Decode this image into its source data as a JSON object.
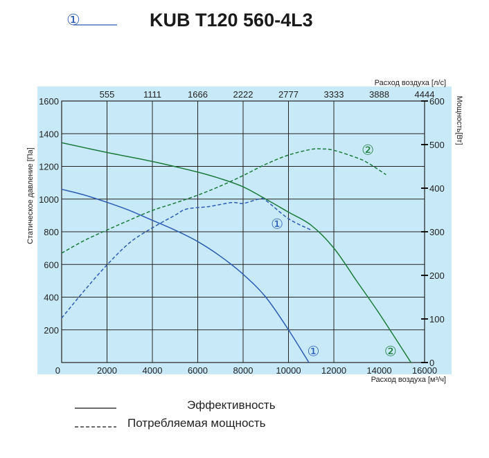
{
  "header": {
    "title": "KUB T120 560-4L3",
    "legend_marker": "①"
  },
  "legend": {
    "solid_label": "Эффективность",
    "dashed_label": "Потребляемая мощность"
  },
  "colors": {
    "background": "#c8e9f8",
    "grid": "#222222",
    "series1": "#2b5cb3",
    "series2": "#1a7a3a"
  },
  "chart_data": {
    "type": "line",
    "grid": true,
    "xlabel": "Расход воздуха [м³/ч]",
    "xlim": [
      0,
      16000
    ],
    "xticks": [
      0,
      2000,
      4000,
      6000,
      8000,
      10000,
      12000,
      14000,
      16000
    ],
    "x2label": "Расход воздуха [л/с]",
    "x2ticks": [
      {
        "at": 2000,
        "label": "555"
      },
      {
        "at": 4000,
        "label": "1111"
      },
      {
        "at": 6000,
        "label": "1666"
      },
      {
        "at": 8000,
        "label": "2222"
      },
      {
        "at": 10000,
        "label": "2777"
      },
      {
        "at": 12000,
        "label": "3333"
      },
      {
        "at": 14000,
        "label": "3888"
      },
      {
        "at": 16000,
        "label": "4444"
      }
    ],
    "ylabel": "Статическое давление [Па]",
    "ylim": [
      0,
      1600
    ],
    "yticks": [
      200,
      400,
      600,
      800,
      1000,
      1200,
      1400,
      1600
    ],
    "y2label": "Мощность[Вт]",
    "y2lim": [
      0,
      600
    ],
    "y2ticks": [
      0,
      100,
      200,
      300,
      400,
      500,
      600
    ],
    "series": [
      {
        "label": "①",
        "kind": "pressure",
        "color": "#2b5cb3",
        "dash": false,
        "points": [
          [
            0,
            1060
          ],
          [
            1000,
            1025
          ],
          [
            2000,
            980
          ],
          [
            3000,
            930
          ],
          [
            4000,
            870
          ],
          [
            5000,
            810
          ],
          [
            6000,
            740
          ],
          [
            7000,
            650
          ],
          [
            8000,
            540
          ],
          [
            9000,
            400
          ],
          [
            10000,
            200
          ],
          [
            10900,
            0
          ]
        ],
        "label_at": [
          11100,
          75
        ]
      },
      {
        "label": "①",
        "kind": "power",
        "color": "#2b5cb3",
        "dash": true,
        "points": [
          [
            0,
            102
          ],
          [
            1000,
            165
          ],
          [
            2000,
            224
          ],
          [
            3000,
            275
          ],
          [
            4000,
            309
          ],
          [
            5000,
            338
          ],
          [
            5500,
            352
          ],
          [
            6500,
            358
          ],
          [
            7500,
            367
          ],
          [
            8000,
            365
          ],
          [
            8700,
            375
          ],
          [
            9000,
            372
          ],
          [
            10000,
            330
          ],
          [
            11000,
            304
          ]
        ],
        "label_at": [
          9500,
          320
        ]
      },
      {
        "label": "②",
        "kind": "pressure",
        "color": "#1a7a3a",
        "dash": false,
        "points": [
          [
            0,
            1345
          ],
          [
            2000,
            1285
          ],
          [
            4000,
            1230
          ],
          [
            6000,
            1165
          ],
          [
            7000,
            1125
          ],
          [
            8000,
            1075
          ],
          [
            9000,
            1000
          ],
          [
            10000,
            920
          ],
          [
            11000,
            840
          ],
          [
            12000,
            700
          ],
          [
            13000,
            500
          ],
          [
            14000,
            300
          ],
          [
            15400,
            0
          ]
        ],
        "label_at": [
          14500,
          75
        ]
      },
      {
        "label": "②",
        "kind": "power",
        "color": "#1a7a3a",
        "dash": true,
        "points": [
          [
            0,
            251
          ],
          [
            1000,
            280
          ],
          [
            2000,
            304
          ],
          [
            3000,
            327
          ],
          [
            4000,
            349
          ],
          [
            5000,
            366
          ],
          [
            6000,
            384
          ],
          [
            7000,
            405
          ],
          [
            8000,
            429
          ],
          [
            9000,
            455
          ],
          [
            10000,
            476
          ],
          [
            11000,
            489
          ],
          [
            11500,
            490
          ],
          [
            12000,
            487
          ],
          [
            13000,
            470
          ],
          [
            13500,
            458
          ],
          [
            14300,
            431
          ]
        ],
        "label_at": [
          13500,
          490
        ]
      }
    ]
  }
}
